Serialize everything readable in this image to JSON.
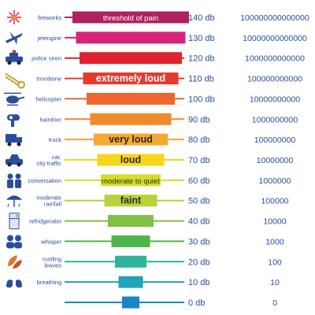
{
  "chart_data": {
    "type": "bar",
    "unit": "db",
    "rows": [
      {
        "source": [
          "fireworks"
        ],
        "db": 140,
        "db_label": "140 db",
        "intensity": "100000000000000",
        "band": "threshold of pain",
        "color": "#b0215f",
        "icon": "fireworks-icon"
      },
      {
        "source": [
          "jetengine"
        ],
        "db": 130,
        "db_label": "130 db",
        "intensity": "10000000000000",
        "band": "",
        "color": "#d8237a",
        "icon": "jet-icon"
      },
      {
        "source": [
          "police siren"
        ],
        "db": 120,
        "db_label": "120 db",
        "intensity": "1000000000000",
        "band": "",
        "color": "#e0242f",
        "icon": "police-car-icon"
      },
      {
        "source": [
          "trombone"
        ],
        "db": 110,
        "db_label": "110 db",
        "intensity": "100000000000",
        "band": "extremely loud",
        "color": "#e53a2d",
        "icon": "trombone-icon"
      },
      {
        "source": [
          "helicopter"
        ],
        "db": 100,
        "db_label": "100 db",
        "intensity": "10000000000",
        "band": "",
        "color": "#ef6530",
        "icon": "helicopter-icon"
      },
      {
        "source": [
          "hairdrier"
        ],
        "db": 90,
        "db_label": "90 db",
        "intensity": "1000000000",
        "band": "",
        "color": "#f28a2c",
        "icon": "hairdryer-icon"
      },
      {
        "source": [
          "truck"
        ],
        "db": 80,
        "db_label": "80 db",
        "intensity": "100000000",
        "band": "very loud",
        "color": "#f6a832",
        "icon": "truck-icon"
      },
      {
        "source": [
          "car,",
          "city traffic"
        ],
        "db": 70,
        "db_label": "70 db",
        "intensity": "10000000",
        "band": "loud",
        "color": "#f7d619",
        "icon": "car-icon"
      },
      {
        "source": [
          "conversation"
        ],
        "db": 60,
        "db_label": "60 db",
        "intensity": "1000000",
        "band": "moderate to quiet",
        "color": "#d6dc2a",
        "icon": "conversation-icon"
      },
      {
        "source": [
          "moderate",
          "rainfall"
        ],
        "db": 50,
        "db_label": "50 db",
        "intensity": "100000",
        "band": "faint",
        "color": "#b6d43a",
        "icon": "rain-icon"
      },
      {
        "source": [
          "refridgerator"
        ],
        "db": 40,
        "db_label": "40 db",
        "intensity": "10000",
        "band": "",
        "color": "#7dc242",
        "icon": "refrigerator-icon"
      },
      {
        "source": [
          "whisper"
        ],
        "db": 30,
        "db_label": "30 db",
        "intensity": "1000",
        "band": "",
        "color": "#4cb64a",
        "icon": "whisper-icon"
      },
      {
        "source": [
          "rustling",
          "leaves"
        ],
        "db": 20,
        "db_label": "20 db",
        "intensity": "100",
        "band": "",
        "color": "#2fb39a",
        "icon": "leaves-icon"
      },
      {
        "source": [
          "breathing"
        ],
        "db": 10,
        "db_label": "10 db",
        "intensity": "10",
        "band": "",
        "color": "#22a4b8",
        "icon": "lungs-icon"
      },
      {
        "source": [
          ""
        ],
        "db": 0,
        "db_label": "0 db",
        "intensity": "0",
        "band": "",
        "color": "#1a86c8",
        "icon": ""
      }
    ],
    "text_color": "#2a4e9c",
    "band_text_color": "#ffffff"
  }
}
